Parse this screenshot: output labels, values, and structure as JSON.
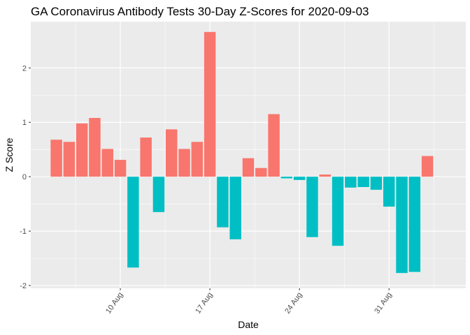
{
  "chart_data": {
    "type": "bar",
    "title": "GA Coronavirus Antibody Tests 30-Day Z-Scores for 2020-09-03",
    "xlabel": "Date",
    "ylabel": "Z Score",
    "ylim": [
      -2.05,
      2.85
    ],
    "yticks": [
      -2,
      -1,
      0,
      1,
      2
    ],
    "xlim": [
      "2020-08-03",
      "2020-09-06"
    ],
    "xticks": [
      {
        "date": "2020-08-10",
        "label": "10 Aug"
      },
      {
        "date": "2020-08-17",
        "label": "17 Aug"
      },
      {
        "date": "2020-08-24",
        "label": "24 Aug"
      },
      {
        "date": "2020-08-31",
        "label": "31 Aug"
      }
    ],
    "grid": true,
    "legend": "none",
    "colors": {
      "positive": "#F8766D",
      "negative": "#00BFC4",
      "panel": "#EBEBEB",
      "grid": "#FFFFFF"
    },
    "x": [
      "2020-08-05",
      "2020-08-06",
      "2020-08-07",
      "2020-08-08",
      "2020-08-09",
      "2020-08-10",
      "2020-08-11",
      "2020-08-12",
      "2020-08-13",
      "2020-08-14",
      "2020-08-15",
      "2020-08-16",
      "2020-08-17",
      "2020-08-18",
      "2020-08-19",
      "2020-08-20",
      "2020-08-21",
      "2020-08-22",
      "2020-08-23",
      "2020-08-24",
      "2020-08-25",
      "2020-08-26",
      "2020-08-27",
      "2020-08-28",
      "2020-08-29",
      "2020-08-30",
      "2020-08-31",
      "2020-09-01",
      "2020-09-02",
      "2020-09-03"
    ],
    "values": [
      0.68,
      0.64,
      0.98,
      1.08,
      0.51,
      0.31,
      -1.67,
      0.72,
      -0.65,
      0.87,
      0.51,
      0.64,
      2.66,
      -0.93,
      -1.15,
      0.34,
      0.16,
      1.15,
      -0.03,
      -0.06,
      -1.11,
      0.04,
      -1.27,
      -0.2,
      -0.19,
      -0.24,
      -0.55,
      -1.77,
      -1.75,
      0.38
    ]
  }
}
